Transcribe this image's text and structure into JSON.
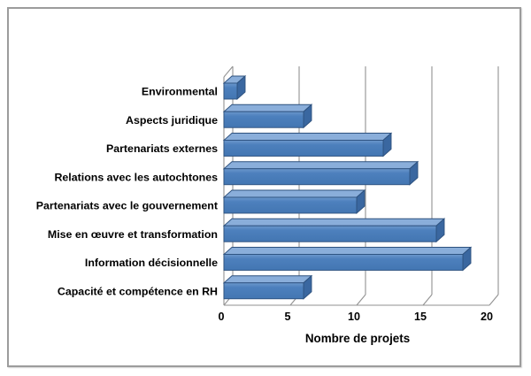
{
  "window": {
    "background": "#ffffff",
    "frame_border_color": "#9c9c9c"
  },
  "chart_data": {
    "type": "bar",
    "orientation": "horizontal",
    "style": "3d",
    "title": "",
    "xlabel": "Nombre de projets",
    "ylabel": "",
    "categories": [
      "Environmental",
      "Aspects juridique",
      "Partenariats externes",
      "Relations avec les autochtones",
      "Partenariats avec le gouvernement",
      "Mise en œuvre et transformation",
      "Information décisionnelle",
      "Capacité et compétence en RH"
    ],
    "values": [
      1,
      6,
      12,
      14,
      10,
      16,
      18,
      6
    ],
    "xlim": [
      0,
      20
    ],
    "xticks": [
      0,
      5,
      10,
      15,
      20
    ],
    "grid": true,
    "legend": "none",
    "colors": {
      "bar_front": "#4a7ebb",
      "bar_front_light": "#6290c7",
      "bar_front_dark": "#4376b2",
      "bar_top": "#8aaeda",
      "bar_side": "#3a67a0",
      "bar_stroke": "#2d517e",
      "gridline": "#929292",
      "wall": "#a0a0a0",
      "text": "#000000"
    }
  }
}
